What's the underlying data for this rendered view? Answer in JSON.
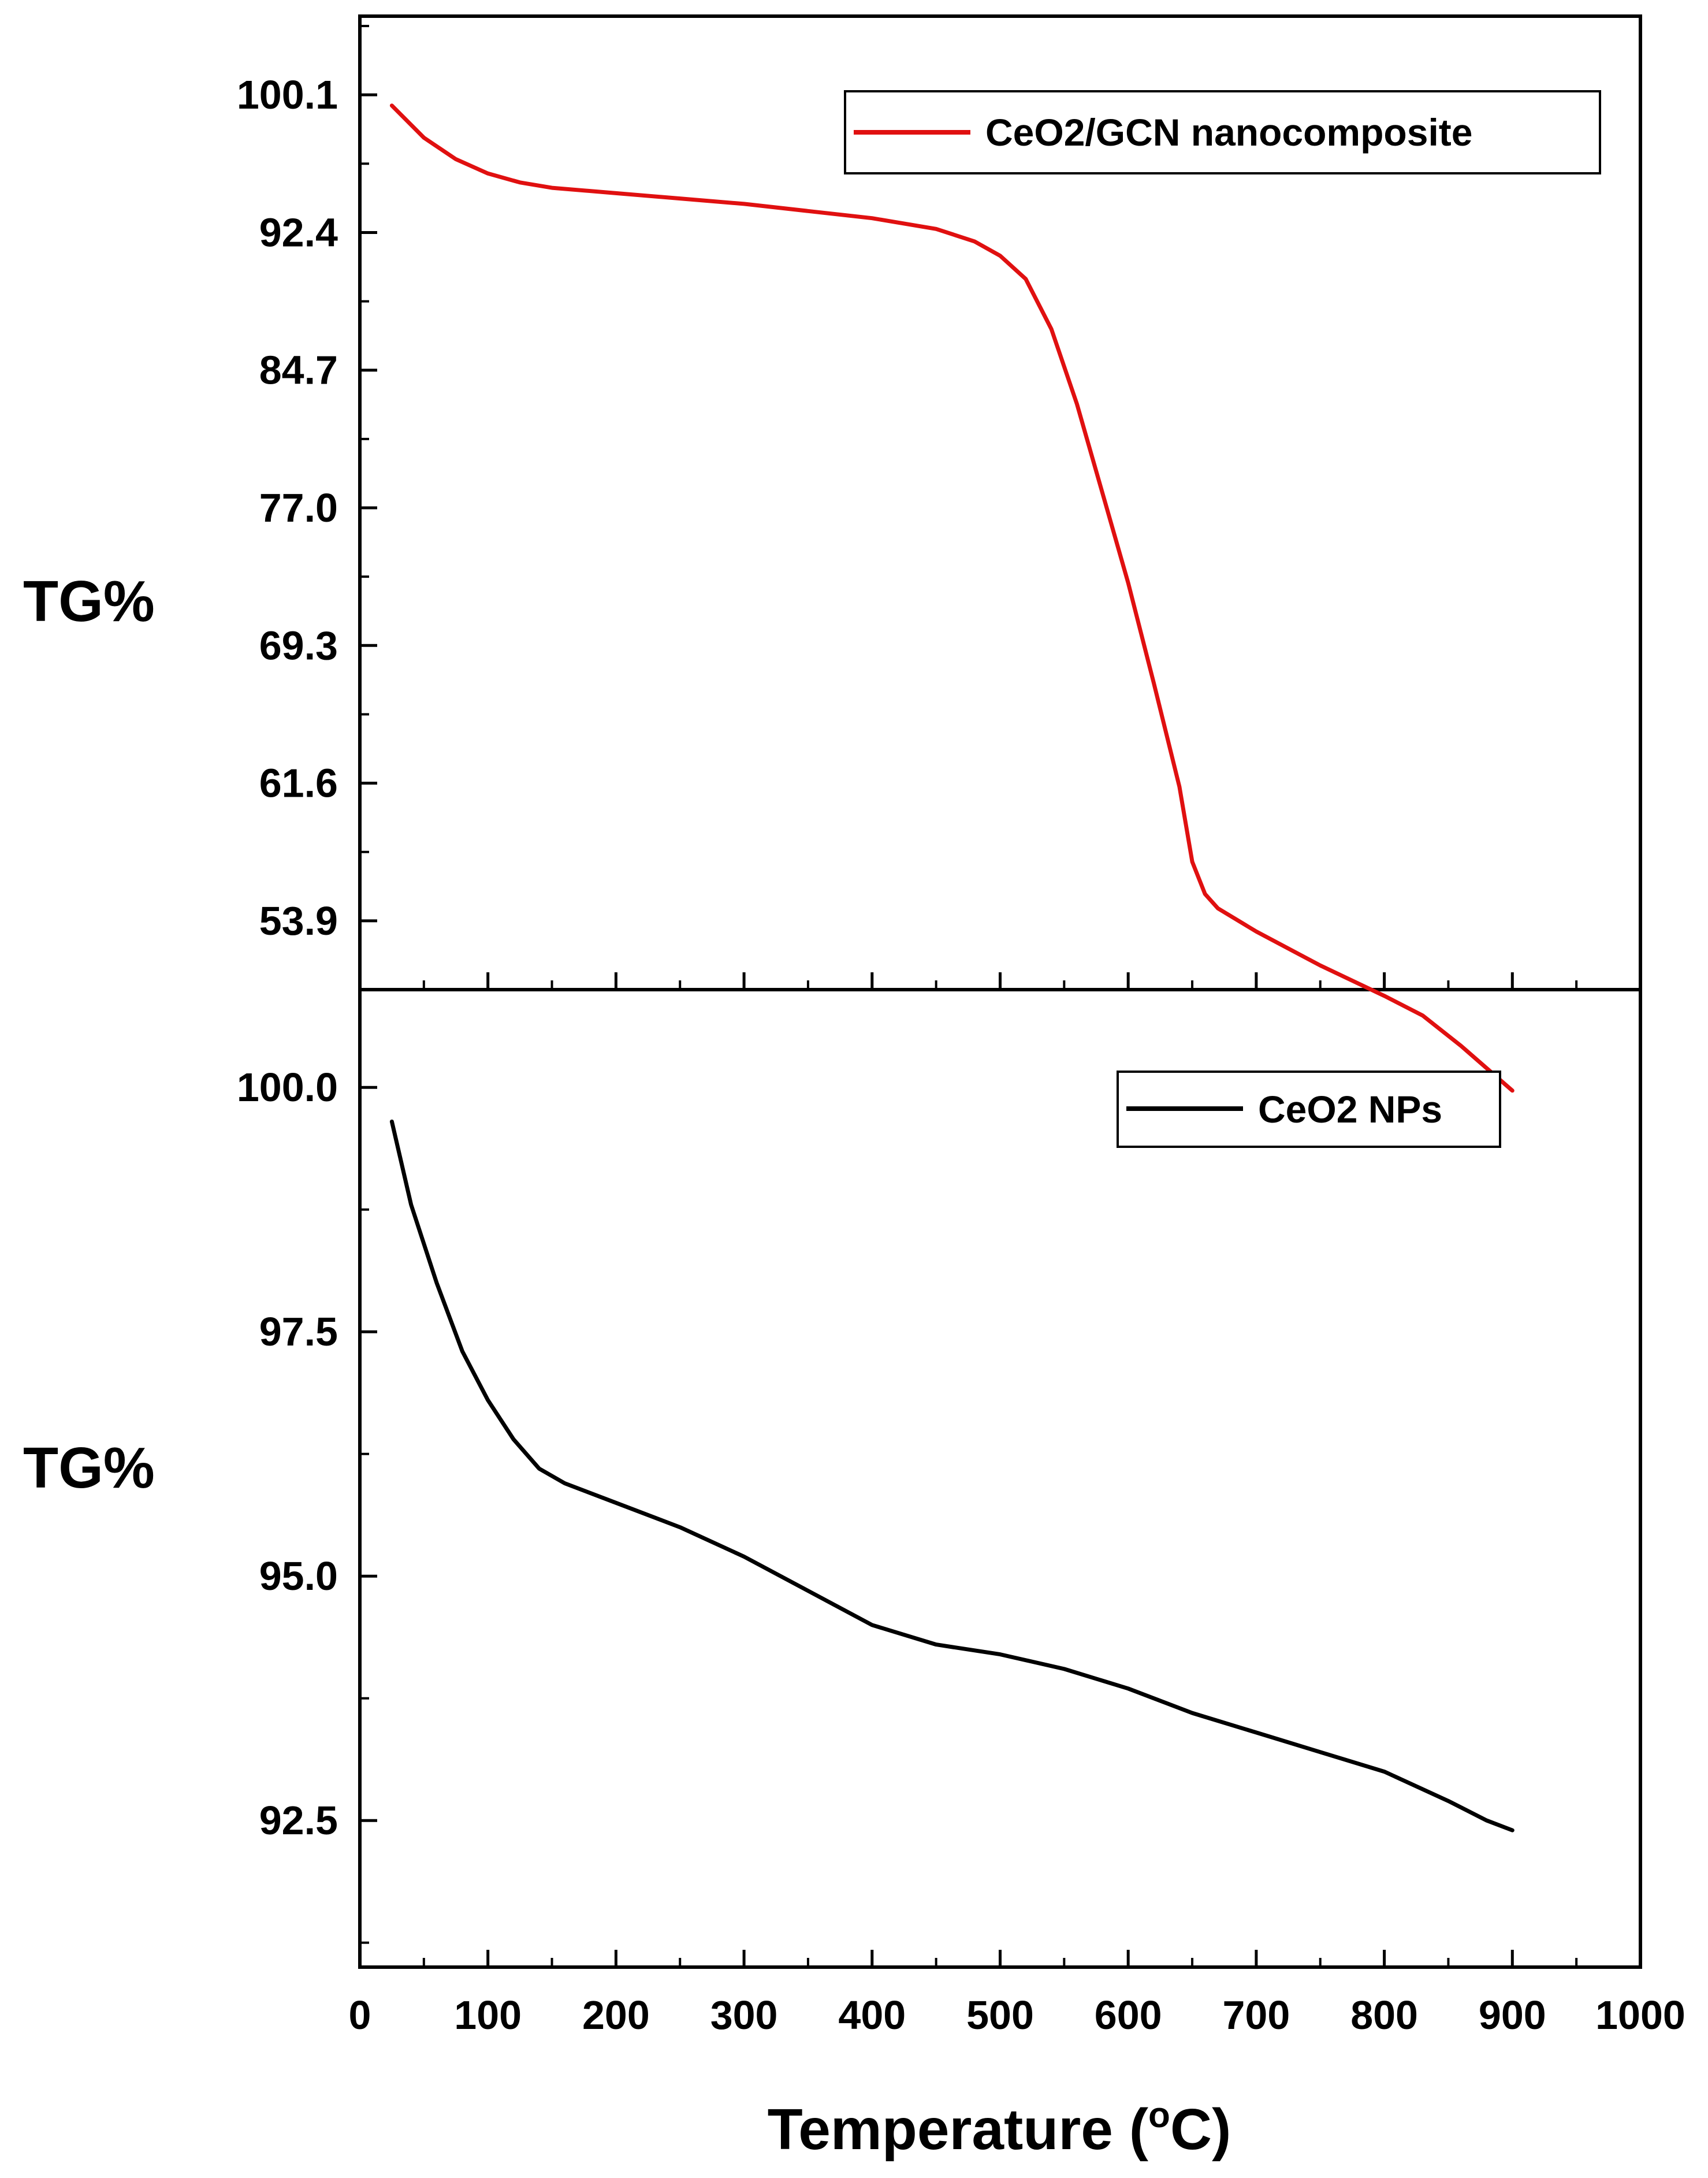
{
  "chart_data": {
    "type": "line",
    "x_axis": {
      "label_main": "Temperature (",
      "label_sup": "o",
      "label_end": "C)",
      "range": [
        0,
        1000
      ],
      "major_ticks": [
        0,
        100,
        200,
        300,
        400,
        500,
        600,
        700,
        800,
        900,
        1000
      ],
      "tick_labels": [
        "0",
        "100",
        "200",
        "300",
        "400",
        "500",
        "600",
        "700",
        "800",
        "900",
        "1000"
      ]
    },
    "panels": [
      {
        "ylabel": "TG%",
        "ylim": [
          50.05,
          104.5
        ],
        "y_ticks": [
          100.1,
          92.4,
          84.7,
          77.0,
          69.3,
          61.6,
          53.9
        ],
        "y_tick_labels": [
          "100.1",
          "92.4",
          "84.7",
          "77.0",
          "69.3",
          "61.6",
          "53.9"
        ],
        "series": [
          {
            "name": "CeO2/GCN nanocomposite",
            "color": "#e01010",
            "x": [
              25,
              50,
              75,
              100,
              125,
              150,
              200,
              250,
              300,
              350,
              400,
              450,
              480,
              500,
              520,
              540,
              560,
              580,
              600,
              620,
              640,
              650,
              660,
              670,
              700,
              750,
              800,
              830,
              860,
              900
            ],
            "y": [
              99.5,
              97.7,
              96.5,
              95.7,
              95.2,
              94.9,
              94.6,
              94.3,
              94.0,
              93.6,
              93.2,
              92.6,
              91.9,
              91.1,
              89.8,
              87.0,
              82.8,
              77.8,
              72.8,
              67.2,
              61.4,
              57.2,
              55.4,
              54.6,
              53.3,
              51.4,
              49.7,
              48.6,
              46.9,
              44.4
            ]
          }
        ]
      },
      {
        "ylabel": "TG%",
        "ylim": [
          91.0,
          101.0
        ],
        "y_ticks": [
          100.0,
          97.5,
          95.0,
          92.5
        ],
        "y_tick_labels": [
          "100.0",
          "97.5",
          "95.0",
          "92.5"
        ],
        "series": [
          {
            "name": "CeO2 NPs",
            "color": "#000000",
            "x": [
              25,
              40,
              60,
              80,
              100,
              120,
              140,
              160,
              200,
              250,
              300,
              350,
              400,
              450,
              500,
              550,
              600,
              650,
              700,
              750,
              800,
              850,
              880,
              900
            ],
            "y": [
              99.65,
              98.8,
              98.0,
              97.3,
              96.8,
              96.4,
              96.1,
              95.95,
              95.75,
              95.5,
              95.2,
              94.85,
              94.5,
              94.3,
              94.2,
              94.05,
              93.85,
              93.6,
              93.4,
              93.2,
              93.0,
              92.7,
              92.5,
              92.4
            ]
          }
        ]
      }
    ]
  }
}
